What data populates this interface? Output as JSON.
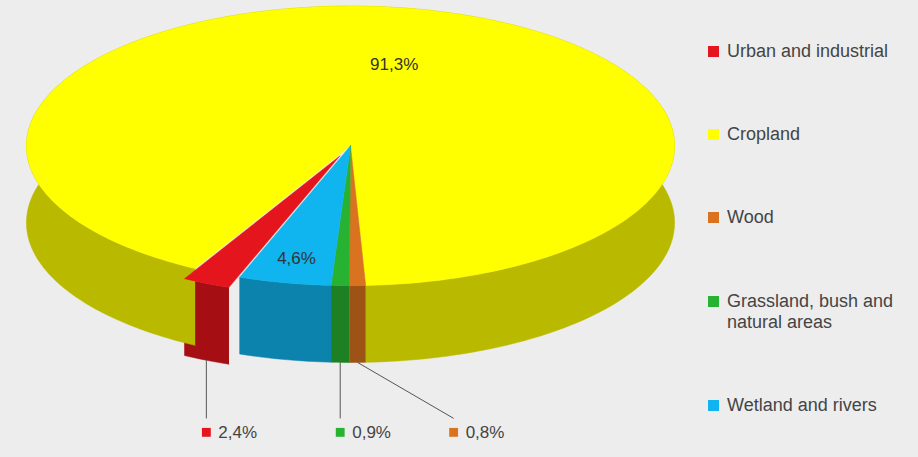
{
  "chart_data": {
    "type": "pie",
    "categories": [
      "Urban and industrial",
      "Cropland",
      "Wood",
      "Grassland, bush and natural areas",
      "Wetland and rivers"
    ],
    "values": [
      2.4,
      91.3,
      0.8,
      0.9,
      4.6
    ],
    "value_labels": [
      "2,4%",
      "91,3%",
      "0,8%",
      "0,9%",
      "4,6%"
    ],
    "colors": [
      "#e4151c",
      "#ffff00",
      "#d9731f",
      "#28b232",
      "#10b4ee"
    ],
    "data_labels": true,
    "legend": "right"
  }
}
